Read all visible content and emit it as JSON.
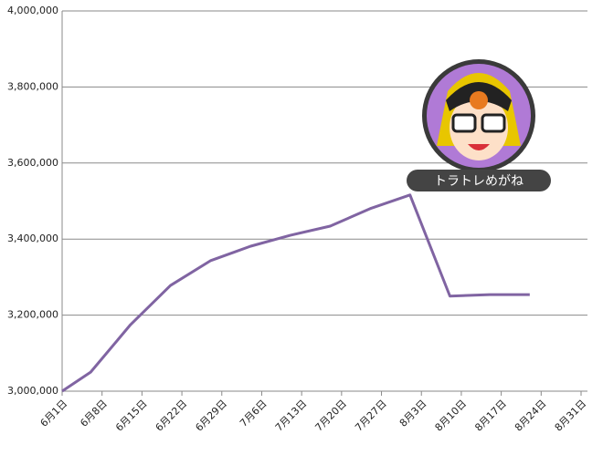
{
  "chart_data": {
    "type": "line",
    "x": [
      "6月1日",
      "6月6日",
      "6月13日",
      "6月20日",
      "6月27日",
      "7月4日",
      "7月11日",
      "7月18日",
      "7月25日",
      "8月1日",
      "8月8日",
      "8月15日",
      "8月22日"
    ],
    "series": [
      {
        "name": "トラトレめがね",
        "color": "#8064a2",
        "values": [
          3000000,
          3050000,
          3175000,
          3278000,
          3343000,
          3381000,
          3410000,
          3434000,
          3480000,
          3516000,
          3250000,
          3254000,
          3254000
        ]
      }
    ],
    "xticks": [
      "6月1日",
      "6月8日",
      "6月15日",
      "6月22日",
      "6月29日",
      "7月6日",
      "7月13日",
      "7月20日",
      "7月27日",
      "8月3日",
      "8月10日",
      "8月17日",
      "8月24日",
      "8月31日"
    ],
    "ylim": [
      3000000,
      4000000
    ],
    "yticks": [
      {
        "value": 3000000,
        "label": "3,000,000"
      },
      {
        "value": 3200000,
        "label": "3,200,000"
      },
      {
        "value": 3400000,
        "label": "3,400,000"
      },
      {
        "value": 3600000,
        "label": "3,600,000"
      },
      {
        "value": 3800000,
        "label": "3,800,000"
      },
      {
        "value": 4000000,
        "label": "4,000,000"
      }
    ],
    "grid": true
  }
}
